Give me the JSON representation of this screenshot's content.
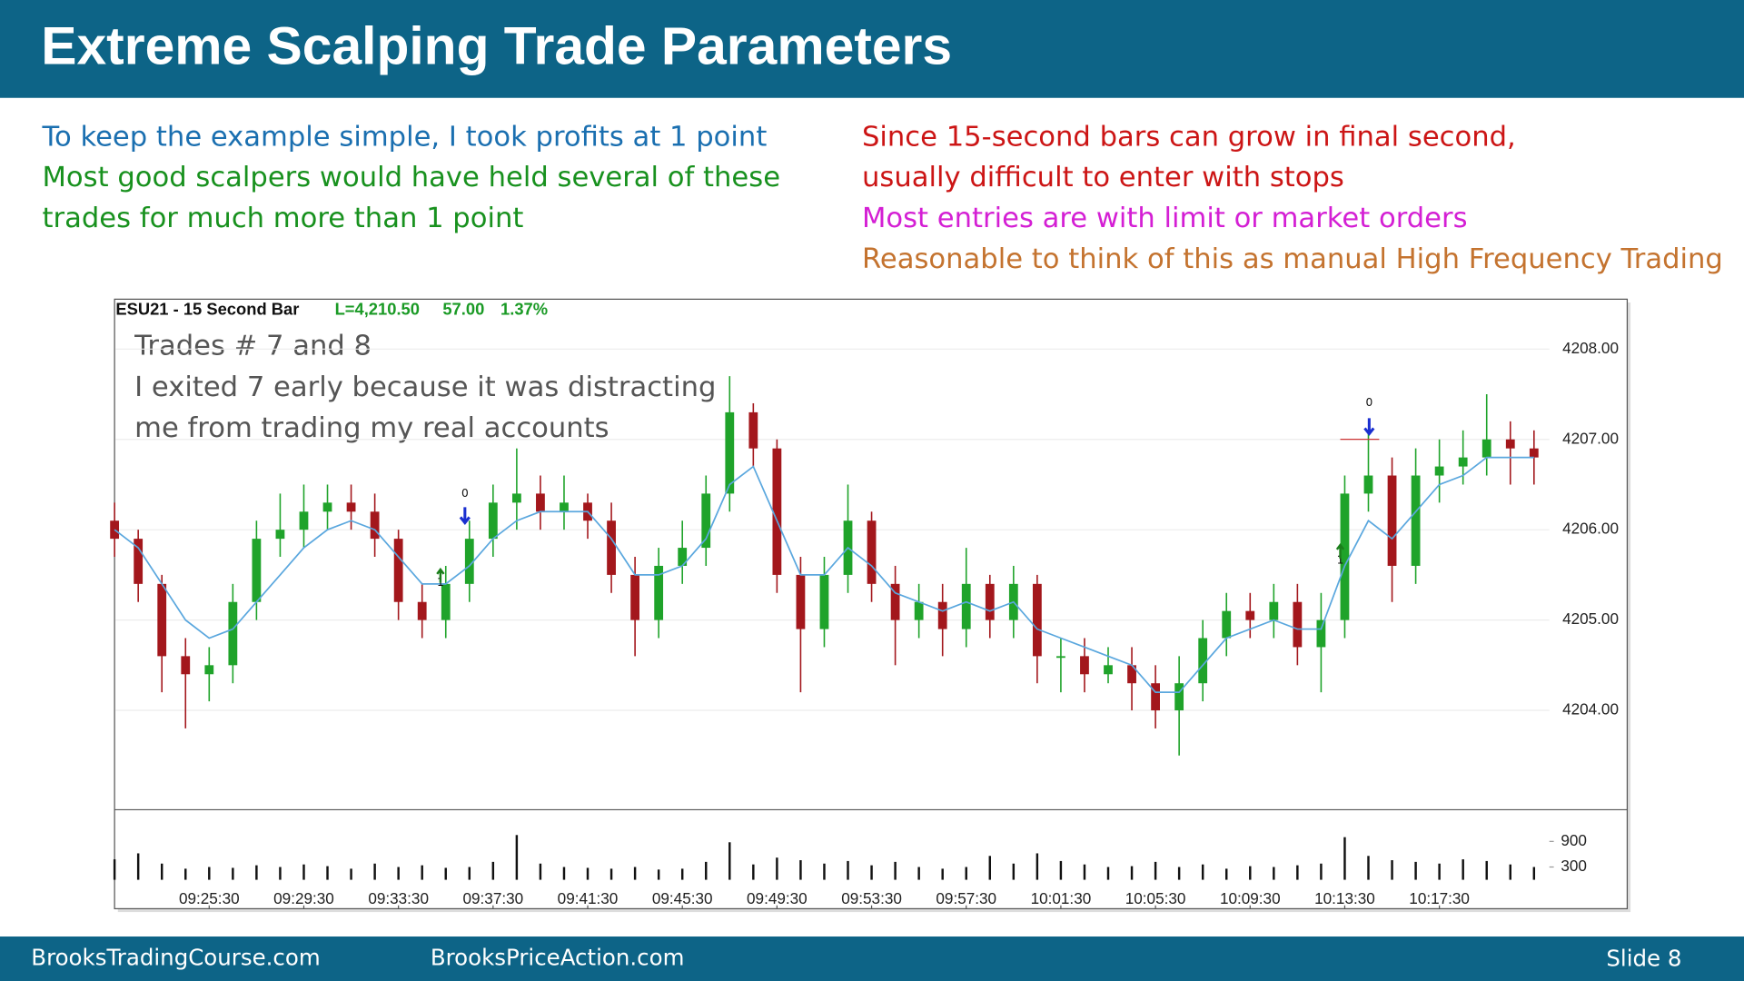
{
  "header": {
    "title": "Extreme Scalping Trade Parameters"
  },
  "notes_left": [
    {
      "text": "To keep the example simple, I took profits at 1 point",
      "color": "#1a6fb0"
    },
    {
      "text": "Most good scalpers would have held several of these",
      "color": "#18911e"
    },
    {
      "text": "trades for much more than 1 point",
      "color": "#18911e"
    }
  ],
  "notes_right": [
    {
      "text": "Since 15-second bars can grow in final second,",
      "color": "#cc1515"
    },
    {
      "text": "usually difficult to enter with stops",
      "color": "#cc1515"
    },
    {
      "text": "Most entries are with limit or market orders",
      "color": "#d41fd4"
    },
    {
      "text": "Reasonable to think of this as manual High Frequency Trading",
      "color": "#c4732f"
    }
  ],
  "footer": {
    "left": "BrooksTradingCourse.com",
    "middle": "BrooksPriceAction.com",
    "slide": "Slide  8"
  },
  "chart_data": {
    "type": "candlestick",
    "symbol": "ESU21 - 15 Second Bar",
    "last": "L=4,210.50",
    "change": "57.00",
    "change_pct": "1.37%",
    "annotation": [
      "Trades # 7 and 8",
      "I exited 7 early because it was distracting",
      "me from trading my real accounts"
    ],
    "trade_labels": [
      "0",
      "1",
      "0",
      "1"
    ],
    "categories": [
      null,
      null,
      null,
      null,
      "09:25:30",
      null,
      null,
      null,
      "09:29:30",
      null,
      null,
      null,
      "09:33:30",
      null,
      null,
      null,
      "09:37:30",
      null,
      null,
      null,
      "09:41:30",
      null,
      null,
      null,
      "09:45:30",
      null,
      null,
      null,
      "09:49:30",
      null,
      null,
      null,
      "09:53:30",
      null,
      null,
      null,
      "09:57:30",
      null,
      null,
      null,
      "10:01:30",
      null,
      null,
      null,
      "10:05:30",
      null,
      null,
      null,
      "10:09:30",
      null,
      null,
      null,
      "10:13:30",
      null,
      null,
      null,
      "10:17:30",
      null,
      null,
      null,
      null
    ],
    "open": [
      4206.1,
      4205.9,
      4205.4,
      4204.6,
      4204.4,
      4204.5,
      4205.2,
      4205.9,
      4206.0,
      4206.2,
      4206.3,
      4206.2,
      4205.9,
      4205.2,
      4205.0,
      4205.4,
      4205.9,
      4206.3,
      4206.4,
      4206.2,
      4206.3,
      4206.1,
      4205.5,
      4205.0,
      4205.6,
      4205.8,
      4206.4,
      4207.3,
      4206.9,
      4205.5,
      4204.9,
      4205.5,
      4206.1,
      4205.4,
      4205.0,
      4205.2,
      4204.9,
      4205.4,
      4205.0,
      4205.4,
      4204.6,
      4204.6,
      4204.4,
      4204.5,
      4204.3,
      4204.0,
      4204.3,
      4204.8,
      4205.1,
      4205.0,
      4205.2,
      4204.7,
      4205.0,
      4206.4,
      4206.6,
      4205.6,
      4206.6,
      4206.7,
      4206.8,
      4207.0,
      4206.9
    ],
    "high": [
      4206.3,
      4206.0,
      4205.5,
      4204.8,
      4204.7,
      4205.4,
      4206.1,
      4206.4,
      4206.5,
      4206.5,
      4206.5,
      4206.4,
      4206.0,
      4205.4,
      4205.6,
      4206.1,
      4206.5,
      4206.9,
      4206.6,
      4206.6,
      4206.4,
      4206.3,
      4205.7,
      4205.8,
      4206.1,
      4206.6,
      4207.7,
      4207.4,
      4207.0,
      4205.7,
      4205.7,
      4206.5,
      4206.2,
      4205.6,
      4205.4,
      4205.4,
      4205.8,
      4205.5,
      4205.6,
      4205.5,
      4204.8,
      4204.8,
      4204.7,
      4204.7,
      4204.5,
      4204.6,
      4205.0,
      4205.3,
      4205.3,
      4205.4,
      4205.4,
      4205.3,
      4206.6,
      4207.1,
      4206.8,
      4206.9,
      4207.0,
      4207.1,
      4207.5,
      4207.2,
      4207.1
    ],
    "low": [
      4205.7,
      4205.2,
      4204.2,
      4203.8,
      4204.1,
      4204.3,
      4205.0,
      4205.7,
      4205.8,
      4206.0,
      4206.0,
      4205.7,
      4205.0,
      4204.8,
      4204.8,
      4205.2,
      4205.7,
      4206.0,
      4206.0,
      4206.0,
      4205.9,
      4205.3,
      4204.6,
      4204.8,
      4205.4,
      4205.6,
      4206.2,
      4206.7,
      4205.3,
      4204.2,
      4204.7,
      4205.3,
      4205.2,
      4204.5,
      4204.8,
      4204.6,
      4204.7,
      4204.8,
      4204.8,
      4204.3,
      4204.2,
      4204.2,
      4204.3,
      4204.0,
      4203.8,
      4203.5,
      4204.1,
      4204.6,
      4204.8,
      4204.8,
      4204.5,
      4204.2,
      4204.8,
      4206.2,
      4205.2,
      4205.4,
      4206.3,
      4206.5,
      4206.6,
      4206.5,
      4206.5
    ],
    "close": [
      4205.9,
      4205.4,
      4204.6,
      4204.4,
      4204.5,
      4205.2,
      4205.9,
      4206.0,
      4206.2,
      4206.3,
      4206.2,
      4205.9,
      4205.2,
      4205.0,
      4205.4,
      4205.9,
      4206.3,
      4206.4,
      4206.2,
      4206.3,
      4206.1,
      4205.5,
      4205.0,
      4205.6,
      4205.8,
      4206.4,
      4207.3,
      4206.9,
      4205.5,
      4204.9,
      4205.5,
      4206.1,
      4205.4,
      4205.0,
      4205.2,
      4204.9,
      4205.4,
      4205.0,
      4205.4,
      4204.6,
      4204.6,
      4204.4,
      4204.5,
      4204.3,
      4204.0,
      4204.3,
      4204.8,
      4205.1,
      4205.0,
      4205.2,
      4204.7,
      4205.0,
      4206.4,
      4206.6,
      4205.6,
      4206.6,
      4206.7,
      4206.8,
      4207.0,
      4206.9,
      4206.8
    ],
    "ema": [
      4206.0,
      4205.8,
      4205.4,
      4205.0,
      4204.8,
      4204.9,
      4205.2,
      4205.5,
      4205.8,
      4206.0,
      4206.1,
      4206.0,
      4205.7,
      4205.4,
      4205.4,
      4205.6,
      4205.9,
      4206.1,
      4206.2,
      4206.2,
      4206.2,
      4205.9,
      4205.5,
      4205.5,
      4205.6,
      4205.9,
      4206.5,
      4206.7,
      4206.1,
      4205.5,
      4205.5,
      4205.8,
      4205.6,
      4205.3,
      4205.2,
      4205.1,
      4205.2,
      4205.1,
      4205.2,
      4204.9,
      4204.8,
      4204.7,
      4204.6,
      4204.5,
      4204.2,
      4204.2,
      4204.5,
      4204.8,
      4204.9,
      4205.0,
      4204.9,
      4204.9,
      4205.6,
      4206.1,
      4205.9,
      4206.2,
      4206.5,
      4206.6,
      4206.8,
      4206.8,
      4206.8
    ],
    "volume": [
      480,
      620,
      380,
      260,
      300,
      280,
      340,
      300,
      360,
      320,
      260,
      380,
      300,
      340,
      280,
      300,
      420,
      1050,
      380,
      300,
      280,
      260,
      300,
      240,
      260,
      420,
      880,
      360,
      520,
      460,
      380,
      440,
      340,
      420,
      300,
      260,
      300,
      560,
      380,
      620,
      440,
      360,
      300,
      320,
      420,
      300,
      360,
      260,
      320,
      300,
      340,
      380,
      1000,
      560,
      460,
      420,
      380,
      480,
      440,
      360,
      300
    ],
    "up_color": "#1fa32a",
    "down_color": "#a3171c",
    "ema_color": "#5aa7de",
    "volume_color": "#111111",
    "grid": true,
    "ylim": [
      4202.9,
      4208.54
    ],
    "yticks": [
      {
        "value": 4204,
        "label": "4204.00"
      },
      {
        "value": 4205,
        "label": "4205.00"
      },
      {
        "value": 4206,
        "label": "4206.00"
      },
      {
        "value": 4207,
        "label": "4207.00"
      },
      {
        "value": 4208,
        "label": "4208.00"
      }
    ],
    "y2lim": [
      0,
      1550
    ],
    "y2ticks": [
      300,
      900
    ]
  }
}
